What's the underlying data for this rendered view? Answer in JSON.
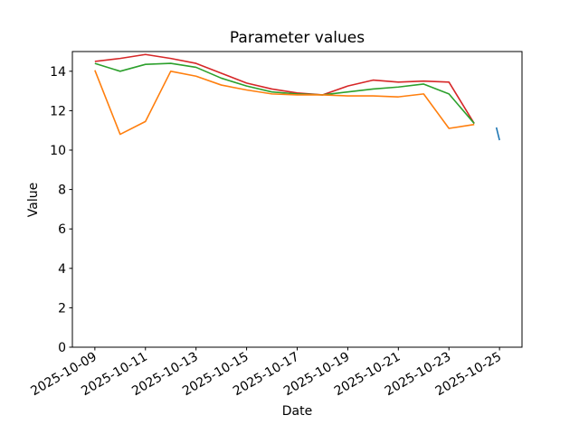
{
  "figure": {
    "background": "#ffffff",
    "text_color": "#000000"
  },
  "chart_data": {
    "type": "line",
    "title": "Parameter values",
    "xlabel": "Date",
    "ylabel": "Value",
    "ylim": [
      0,
      15
    ],
    "x_range": [
      "2025-10-09",
      "2025-10-25"
    ],
    "x_margin_frac": 0.05,
    "grid": false,
    "legend": "none",
    "x_tick_rotation_deg": 30,
    "x_tick_labels": [
      "2025-10-09",
      "2025-10-11",
      "2025-10-13",
      "2025-10-15",
      "2025-10-17",
      "2025-10-19",
      "2025-10-21",
      "2025-10-23",
      "2025-10-25"
    ],
    "y_ticks": [
      0,
      2,
      4,
      6,
      8,
      10,
      12,
      14
    ],
    "line_width": 1.6,
    "series": [
      {
        "id": "red",
        "color": "#d62728",
        "x": [
          "2025-10-09",
          "2025-10-10",
          "2025-10-11",
          "2025-10-12",
          "2025-10-13",
          "2025-10-14",
          "2025-10-15",
          "2025-10-16",
          "2025-10-17",
          "2025-10-18",
          "2025-10-19",
          "2025-10-20",
          "2025-10-21",
          "2025-10-22",
          "2025-10-23",
          "2025-10-24"
        ],
        "values": [
          14.5,
          14.65,
          14.85,
          14.65,
          14.4,
          13.9,
          13.4,
          13.1,
          12.9,
          12.8,
          13.25,
          13.55,
          13.45,
          13.5,
          13.45,
          11.35
        ]
      },
      {
        "id": "green",
        "color": "#2ca02c",
        "x": [
          "2025-10-09",
          "2025-10-10",
          "2025-10-11",
          "2025-10-12",
          "2025-10-13",
          "2025-10-14",
          "2025-10-15",
          "2025-10-16",
          "2025-10-17",
          "2025-10-18",
          "2025-10-19",
          "2025-10-20",
          "2025-10-21",
          "2025-10-22",
          "2025-10-23",
          "2025-10-24"
        ],
        "values": [
          14.4,
          14.0,
          14.35,
          14.4,
          14.2,
          13.65,
          13.25,
          12.95,
          12.85,
          12.8,
          12.95,
          13.1,
          13.2,
          13.35,
          12.85,
          11.35
        ]
      },
      {
        "id": "orange",
        "color": "#ff7f0e",
        "x": [
          "2025-10-09",
          "2025-10-10",
          "2025-10-11",
          "2025-10-12",
          "2025-10-13",
          "2025-10-14",
          "2025-10-15",
          "2025-10-16",
          "2025-10-17",
          "2025-10-18",
          "2025-10-19",
          "2025-10-20",
          "2025-10-21",
          "2025-10-22",
          "2025-10-23",
          "2025-10-24"
        ],
        "values": [
          14.05,
          10.8,
          11.45,
          14.0,
          13.75,
          13.3,
          13.05,
          12.85,
          12.8,
          12.8,
          12.75,
          12.75,
          12.7,
          12.85,
          11.1,
          11.3
        ]
      },
      {
        "id": "blue",
        "color": "#1f77b4",
        "x": [
          "2025-10-24T21:00",
          "2025-10-25T00:00"
        ],
        "values": [
          11.15,
          10.5
        ]
      }
    ]
  }
}
